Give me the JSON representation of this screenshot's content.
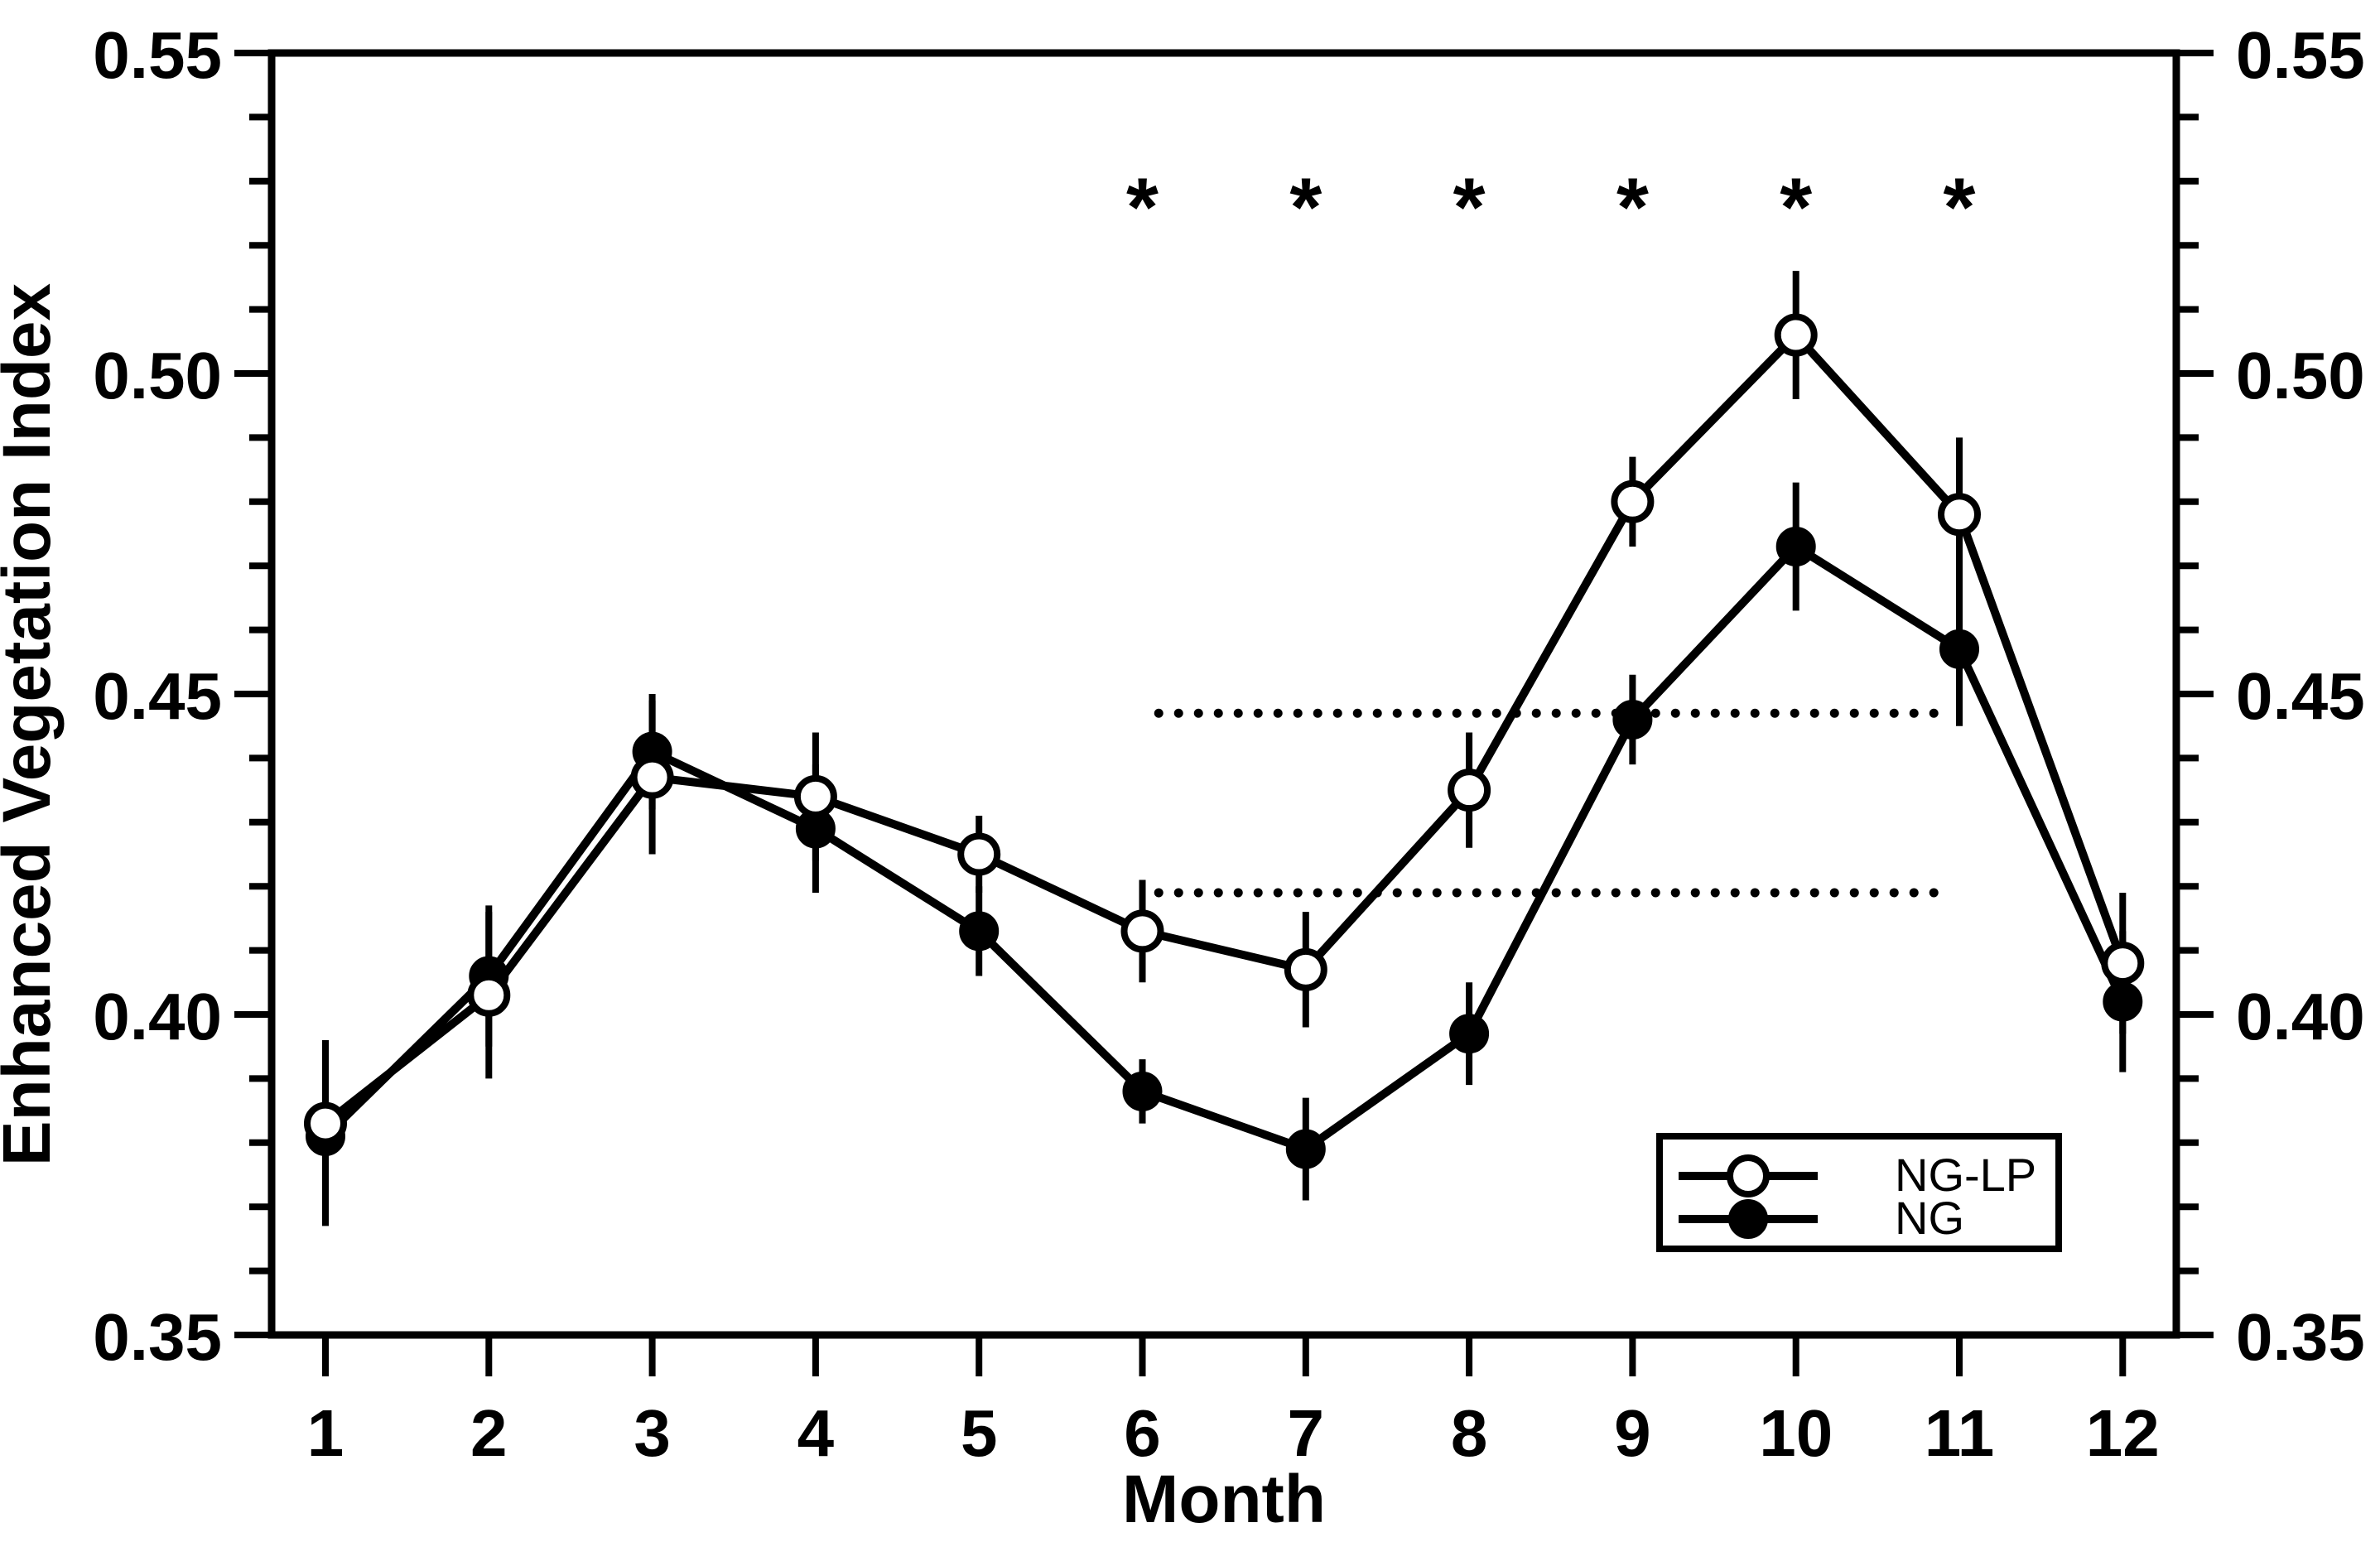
{
  "figure": {
    "background": "#ffffff",
    "ink": "#000000"
  },
  "chart_data": {
    "type": "line",
    "title": "",
    "xlabel": "Month",
    "ylabel": "Enhanced Vegetation Index",
    "x_months": [
      1,
      2,
      3,
      4,
      5,
      6,
      7,
      8,
      9,
      10,
      11,
      12
    ],
    "x_tick_labels": [
      "1",
      "2",
      "3",
      "4",
      "5",
      "6",
      "7",
      "8",
      "9",
      "10",
      "11",
      "12"
    ],
    "ylim": [
      0.35,
      0.55
    ],
    "y_major_tick_values": [
      0.35,
      0.4,
      0.45,
      0.5,
      0.55
    ],
    "y_major_tick_labels": [
      "0.35",
      "0.40",
      "0.45",
      "0.50",
      "0.55"
    ],
    "y_minor_step": 0.01,
    "grid": false,
    "axis_box": true,
    "right_axis_mirrored_labels": true,
    "legend_position": "bottom-right",
    "series": [
      {
        "name": "NG-LP",
        "marker": "open-circle",
        "values": [
          0.383,
          0.403,
          0.437,
          0.434,
          0.425,
          0.413,
          0.407,
          0.435,
          0.48,
          0.506,
          0.478,
          0.408
        ],
        "errors": [
          0.013,
          0.013,
          0.012,
          0.01,
          0.006,
          0.008,
          0.009,
          0.009,
          0.007,
          0.01,
          0.012,
          0.011
        ]
      },
      {
        "name": "NG",
        "marker": "filled-circle",
        "values": [
          0.381,
          0.406,
          0.441,
          0.429,
          0.413,
          0.388,
          0.379,
          0.397,
          0.446,
          0.473,
          0.457,
          0.402
        ],
        "errors": [
          0.014,
          0.011,
          0.009,
          0.01,
          0.007,
          0.005,
          0.008,
          0.008,
          0.007,
          0.01,
          0.012,
          0.011
        ]
      }
    ],
    "reference_lines": [
      {
        "id": "upper",
        "y": 0.447,
        "start_month": 6.1,
        "end_month": 10.9,
        "style": "dotted"
      },
      {
        "id": "lower",
        "y": 0.419,
        "start_month": 6.1,
        "end_month": 10.9,
        "style": "dotted"
      }
    ],
    "significance": {
      "symbol": "*",
      "months": [
        6,
        7,
        8,
        9,
        10,
        11
      ],
      "level": 0.528
    },
    "legend": {
      "entries": [
        {
          "label": "NG-LP",
          "marker": "open-circle"
        },
        {
          "label": "NG",
          "marker": "filled-circle"
        }
      ]
    }
  }
}
